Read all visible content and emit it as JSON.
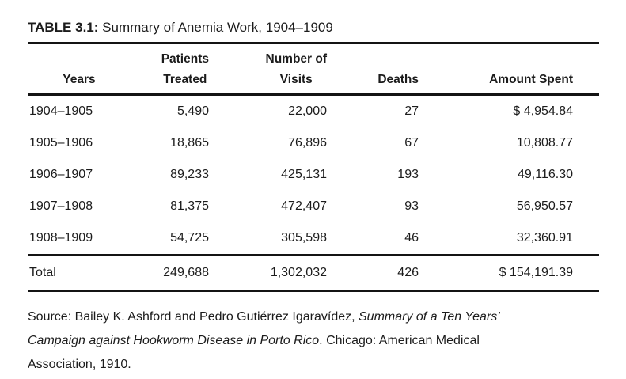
{
  "page": {
    "title": {
      "label": "TABLE 3.1:",
      "text": "Summary of Anemia Work, 1904–1909"
    },
    "table": {
      "headers": {
        "years": "Years",
        "patients_line1": "Patients",
        "patients_line2": "Treated",
        "visits_line1": "Number of",
        "visits_line2": "Visits",
        "deaths": "Deaths",
        "amount": "Amount Spent"
      },
      "rows": [
        {
          "years": "1904–1905",
          "patients": "5,490",
          "visits": "22,000",
          "deaths": "27",
          "amount": "$ 4,954.84"
        },
        {
          "years": "1905–1906",
          "patients": "18,865",
          "visits": "76,896",
          "deaths": "67",
          "amount": "10,808.77"
        },
        {
          "years": "1906–1907",
          "patients": "89,233",
          "visits": "425,131",
          "deaths": "193",
          "amount": "49,116.30"
        },
        {
          "years": "1907–1908",
          "patients": "81,375",
          "visits": "472,407",
          "deaths": "93",
          "amount": "56,950.57"
        },
        {
          "years": "1908–1909",
          "patients": "54,725",
          "visits": "305,598",
          "deaths": "46",
          "amount": "32,360.91"
        }
      ],
      "total": {
        "label": "Total",
        "patients": "249,688",
        "visits": "1,302,032",
        "deaths": "426",
        "amount": "$ 154,191.39"
      }
    },
    "source": {
      "prefix": "Source: Bailey K. Ashford and Pedro Gutiérrez Igaravídez, ",
      "book_title": "Summary of a Ten Years’ Campaign against Hookworm Disease in Porto Rico",
      "suffix": ". Chicago: American Medical Association, 1910."
    },
    "colors": {
      "text": "#1c1c1c",
      "rule": "#141414",
      "background": "#ffffff"
    }
  },
  "chart_data": {
    "type": "table",
    "title": "TABLE 3.1: Summary of Anemia Work, 1904–1909",
    "columns": [
      "Years",
      "Patients Treated",
      "Number of Visits",
      "Deaths",
      "Amount Spent"
    ],
    "rows": [
      [
        "1904–1905",
        5490,
        22000,
        27,
        4954.84
      ],
      [
        "1905–1906",
        18865,
        76896,
        67,
        10808.77
      ],
      [
        "1906–1907",
        89233,
        425131,
        193,
        49116.3
      ],
      [
        "1907–1908",
        81375,
        472407,
        93,
        56950.57
      ],
      [
        "1908–1909",
        54725,
        305598,
        46,
        32360.91
      ]
    ],
    "total_row": [
      "Total",
      249688,
      1302032,
      426,
      154191.39
    ],
    "amount_unit": "$"
  }
}
